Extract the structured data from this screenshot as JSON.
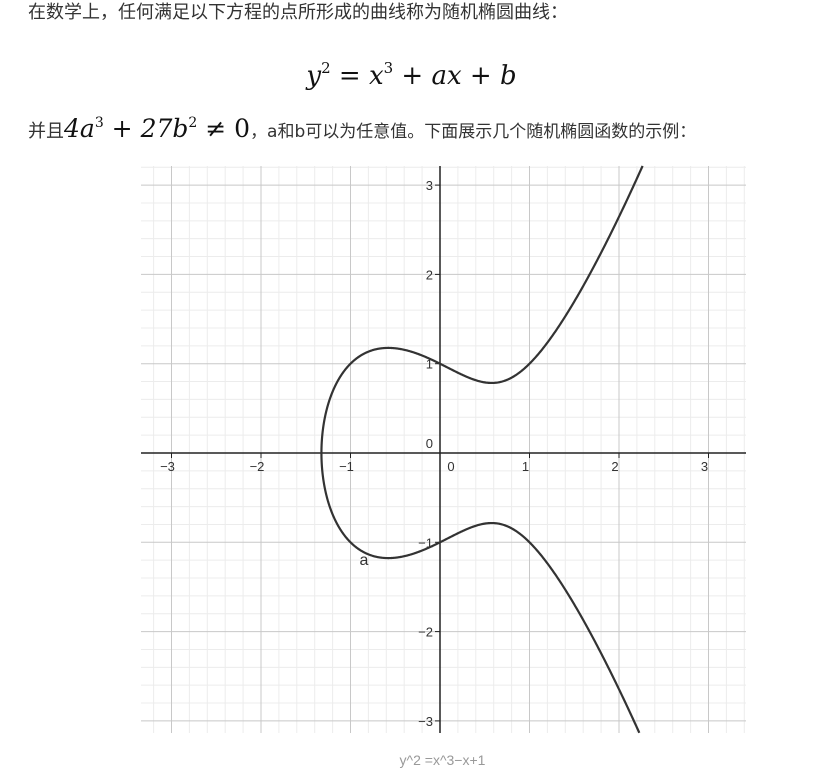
{
  "intro": {
    "text": "在数学上，任何满足以下方程的点所形成的曲线称为随机椭圆曲线："
  },
  "equation": {
    "lhs_var": "y",
    "lhs_exp": "2",
    "eq": " = ",
    "term1_var": "x",
    "term1_exp": "3",
    "op1": " + ",
    "term2": "ax",
    "op2": " + ",
    "term3": "b"
  },
  "condition": {
    "prefix": "并且",
    "c1": "4a",
    "e1": "3",
    "op": " + 27b",
    "e2": "2",
    "rel": " ≠ 0",
    "suffix": "，a和b可以为任意值。下面展示几个随机椭圆函数的示例："
  },
  "chart_data": {
    "type": "line",
    "title": "",
    "xlabel": "",
    "ylabel": "",
    "xlim": [
      -3.4,
      3.4
    ],
    "ylim": [
      -3.1,
      3.2
    ],
    "grid": true,
    "x_ticks": [
      "−3",
      "−2",
      "−1",
      "0",
      "1",
      "2",
      "3"
    ],
    "y_ticks": [
      "3",
      "2",
      "1",
      "0",
      "−1",
      "−2",
      "−3"
    ],
    "series": [
      {
        "name": "a",
        "equation": "y^2 = x^3 - x + 1",
        "color": "#333333"
      }
    ],
    "annotations": [
      {
        "text": "a",
        "x": -0.85,
        "y": -1.2
      }
    ]
  },
  "caption": "y^2 =x^3−x+1"
}
